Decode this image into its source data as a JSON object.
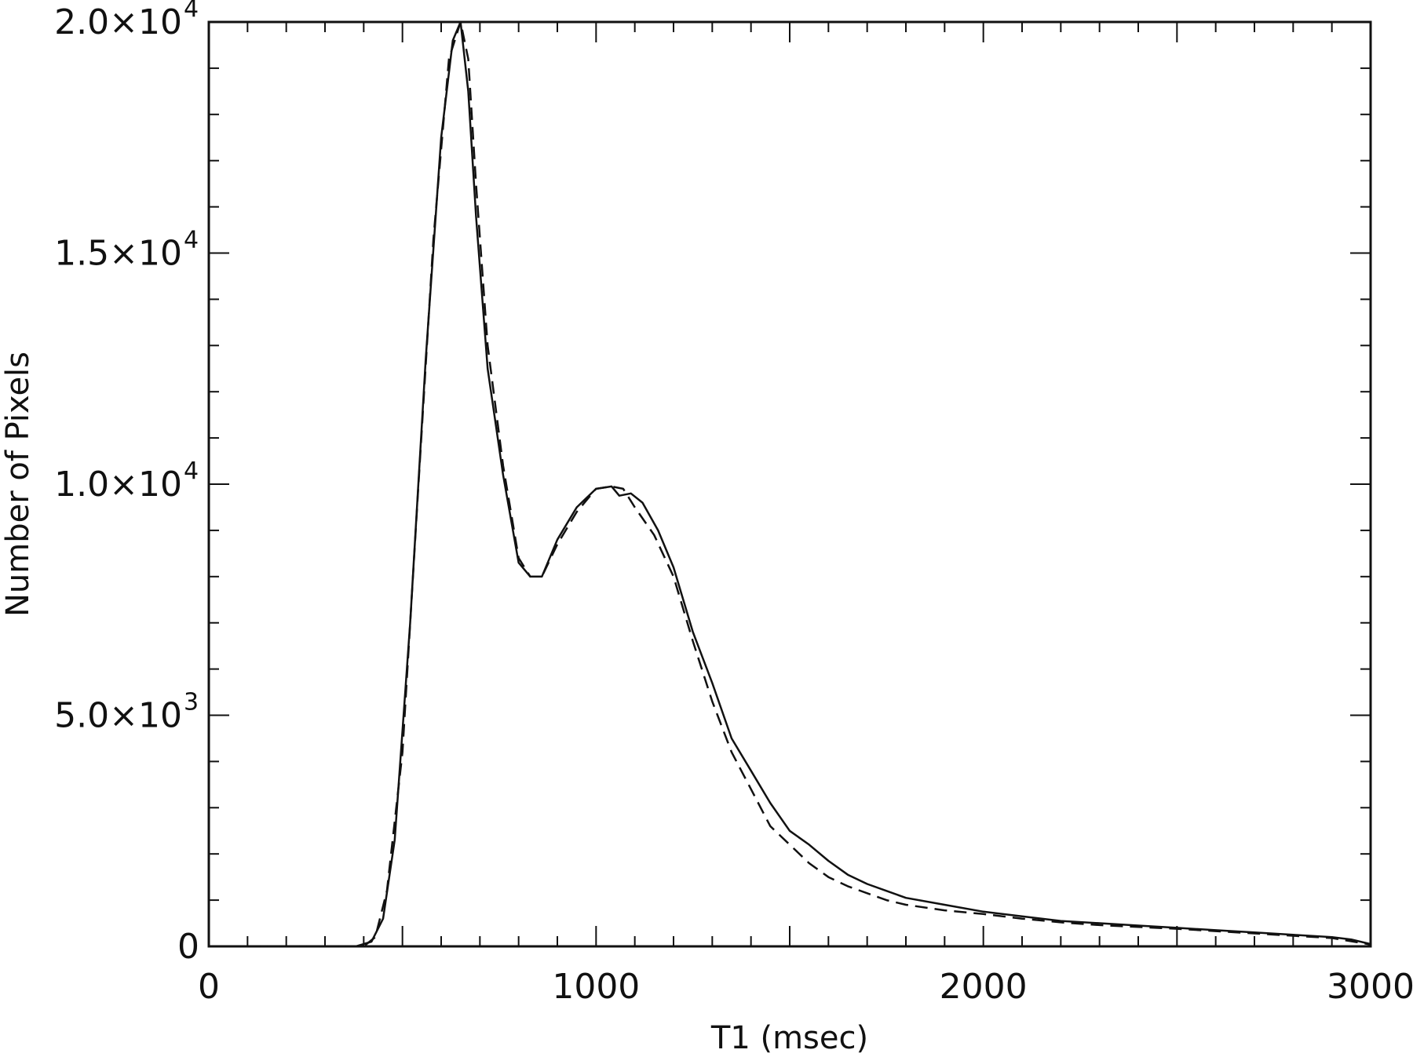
{
  "chart_data": {
    "type": "line",
    "title": "",
    "xlabel": "T1  (msec)",
    "ylabel": "Number of Pixels",
    "xlim": [
      0,
      3000
    ],
    "ylim": [
      0,
      20000
    ],
    "grid": false,
    "x_ticks": [
      {
        "value": 0,
        "label": "0"
      },
      {
        "value": 1000,
        "label": "1000"
      },
      {
        "value": 2000,
        "label": "2000"
      },
      {
        "value": 3000,
        "label": "3000"
      }
    ],
    "y_ticks": [
      {
        "value": 0,
        "label": "0",
        "mantissa": "0",
        "exponent": ""
      },
      {
        "value": 5000,
        "label": "5.0×10³",
        "mantissa": "5.0×10",
        "exponent": "3"
      },
      {
        "value": 10000,
        "label": "1.0×10⁴",
        "mantissa": "1.0×10",
        "exponent": "4"
      },
      {
        "value": 15000,
        "label": "1.5×10⁴",
        "mantissa": "1.5×10",
        "exponent": "4"
      },
      {
        "value": 20000,
        "label": "2.0×10⁴",
        "mantissa": "2.0×10",
        "exponent": "4"
      }
    ],
    "series": [
      {
        "style": "solid",
        "color": "#111111",
        "x": [
          50,
          200,
          380,
          420,
          450,
          480,
          520,
          560,
          600,
          630,
          650,
          670,
          690,
          720,
          760,
          800,
          830,
          860,
          900,
          950,
          1000,
          1040,
          1060,
          1090,
          1120,
          1160,
          1200,
          1250,
          1300,
          1350,
          1400,
          1450,
          1500,
          1550,
          1600,
          1650,
          1700,
          1750,
          1800,
          1900,
          2000,
          2100,
          2200,
          2300,
          2400,
          2500,
          2600,
          2700,
          2800,
          2900,
          2950,
          3000
        ],
        "y": [
          0,
          0,
          0,
          100,
          600,
          2300,
          7000,
          12700,
          17500,
          19600,
          20000,
          18500,
          15800,
          12500,
          10200,
          8300,
          8000,
          8000,
          8800,
          9500,
          9900,
          9950,
          9750,
          9800,
          9600,
          9000,
          8200,
          6800,
          5700,
          4500,
          3800,
          3100,
          2500,
          2200,
          1850,
          1550,
          1350,
          1200,
          1050,
          900,
          750,
          650,
          550,
          500,
          450,
          400,
          350,
          300,
          250,
          200,
          150,
          50
        ]
      },
      {
        "style": "dashed",
        "color": "#111111",
        "x": [
          50,
          200,
          400,
          430,
          460,
          500,
          540,
          580,
          620,
          650,
          670,
          690,
          720,
          760,
          800,
          830,
          860,
          900,
          950,
          1000,
          1040,
          1070,
          1100,
          1150,
          1200,
          1250,
          1300,
          1350,
          1400,
          1450,
          1500,
          1550,
          1600,
          1650,
          1700,
          1750,
          1800,
          1900,
          2000,
          2100,
          2200,
          2300,
          2400,
          2500,
          2600,
          2700,
          2800,
          2900,
          3000
        ],
        "y": [
          0,
          0,
          0,
          200,
          1200,
          4200,
          9800,
          15300,
          19200,
          20000,
          19200,
          16500,
          13000,
          10400,
          8400,
          8000,
          8000,
          8700,
          9400,
          9900,
          9950,
          9900,
          9500,
          8900,
          8000,
          6600,
          5300,
          4200,
          3400,
          2600,
          2200,
          1800,
          1500,
          1300,
          1150,
          1000,
          900,
          780,
          700,
          600,
          520,
          460,
          420,
          380,
          330,
          280,
          230,
          180,
          40
        ]
      }
    ]
  }
}
